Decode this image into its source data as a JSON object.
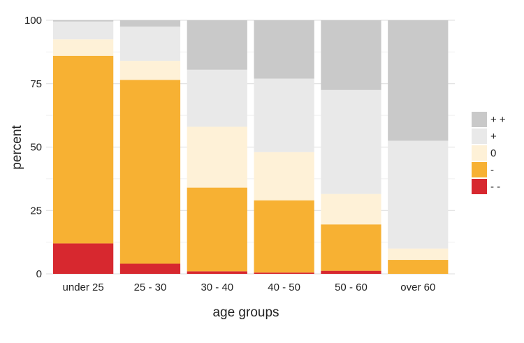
{
  "chart_data": {
    "type": "bar",
    "stacked": true,
    "title": "",
    "xlabel": "age groups",
    "ylabel": "percent",
    "ylim": [
      0,
      100
    ],
    "yticks": [
      0,
      25,
      50,
      75,
      100
    ],
    "grid": true,
    "legend_position": "right",
    "categories": [
      "under 25",
      "25 - 30",
      "30 - 40",
      "40 - 50",
      "50 - 60",
      "over 60"
    ],
    "series": [
      {
        "name": "- -",
        "color": "#d7282f",
        "values": [
          12,
          4,
          1,
          0.5,
          1.2,
          0
        ]
      },
      {
        "name": "-",
        "color": "#f7b133",
        "values": [
          74,
          72.5,
          33,
          28.5,
          18.3,
          5.5
        ]
      },
      {
        "name": "0",
        "color": "#fef1d7",
        "values": [
          6.5,
          7.5,
          24,
          19,
          12,
          4.5
        ]
      },
      {
        "name": "+",
        "color": "#e9e9e9",
        "values": [
          7,
          13.5,
          22.5,
          29,
          41,
          42.5
        ]
      },
      {
        "name": "+ +",
        "color": "#c9c9c9",
        "values": [
          0.5,
          2.5,
          19.5,
          23,
          27.5,
          47.5
        ]
      }
    ]
  }
}
